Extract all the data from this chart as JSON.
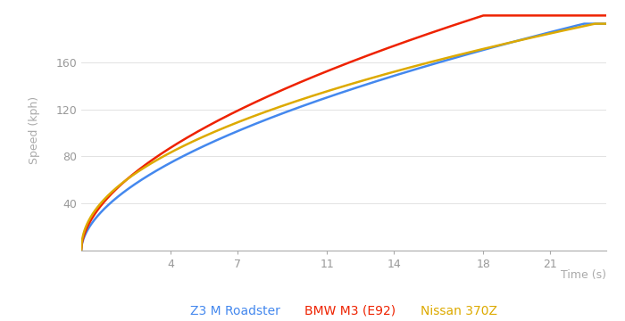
{
  "xlabel": "Time (s)",
  "ylabel": "Speed (kph)",
  "x_ticks": [
    4,
    7,
    11,
    14,
    18,
    21
  ],
  "y_ticks": [
    40,
    80,
    120,
    160
  ],
  "xlim": [
    0,
    23.5
  ],
  "ylim": [
    0,
    205
  ],
  "background_color": "#ffffff",
  "grid_color": "#dddddd",
  "axis_color": "#aaaaaa",
  "tick_color": "#999999",
  "label_color": "#aaaaaa",
  "series": [
    {
      "label": "Z3 M Roadster",
      "color": "#4488ee",
      "v_max": 193,
      "t_ref": 22.5,
      "alpha": 0.55
    },
    {
      "label": "BMW M3 (E92)",
      "color": "#ee2200",
      "v_max": 200,
      "t_ref": 18.0,
      "alpha": 0.55
    },
    {
      "label": "Nissan 370Z",
      "color": "#ddaa00",
      "v_max": 193,
      "t_ref": 23.0,
      "alpha": 0.48
    }
  ],
  "line_width": 1.8,
  "legend_fontsize": 10,
  "axis_label_fontsize": 9,
  "tick_fontsize": 9
}
